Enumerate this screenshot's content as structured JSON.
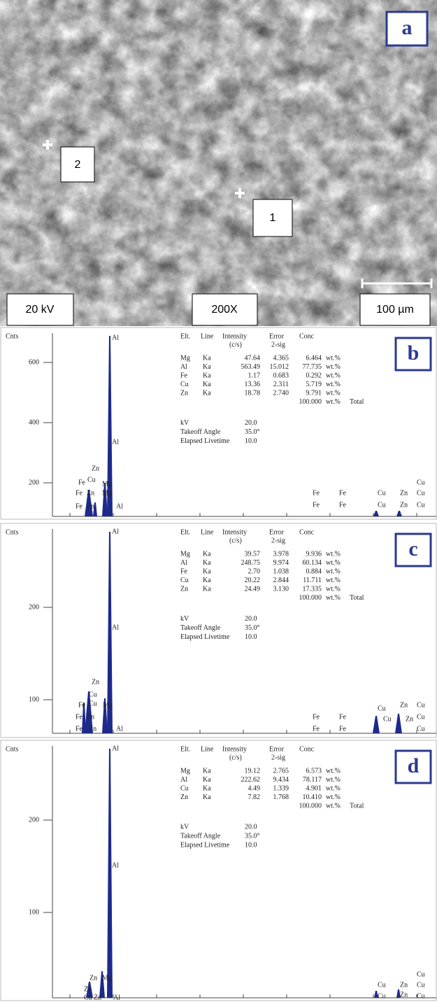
{
  "panel_a": {
    "letter": "a",
    "points": [
      "2",
      "1"
    ],
    "voltage": "20 kV",
    "magnification": "200X",
    "scale": "100 µm"
  },
  "spectra": [
    {
      "letter": "b",
      "y_label": "Cnts",
      "y_ticks": [
        600,
        400,
        200
      ],
      "table": {
        "header": [
          "Elt.",
          "Line",
          "Intensity",
          "Error",
          "Conc"
        ],
        "subheader": [
          "(c/s)",
          "2-sig"
        ],
        "rows": [
          [
            "Mg",
            "Ka",
            "47.64",
            "4.365",
            "6.464",
            "wt.%"
          ],
          [
            "Al",
            "Ka",
            "563.49",
            "15.012",
            "77.735",
            "wt.%"
          ],
          [
            "Fe",
            "Ka",
            "1.17",
            "0.683",
            "0.292",
            "wt.%"
          ],
          [
            "Cu",
            "Ka",
            "13.36",
            "2.311",
            "5.719",
            "wt.%"
          ],
          [
            "Zn",
            "Ka",
            "18.78",
            "2.740",
            "9.791",
            "wt.%"
          ]
        ],
        "total": [
          "100.000",
          "wt.%",
          "Total"
        ]
      },
      "settings": [
        [
          "kV",
          "20.0"
        ],
        [
          "Takeoff Angle",
          "35.0°"
        ],
        [
          "Elapsed Livetime",
          "10.0"
        ]
      ],
      "peak_labels": [
        "Al",
        "Al",
        "Zn",
        "Fe",
        "Cu",
        "Mg",
        "Fe",
        "Zn",
        "Mg",
        "Fe",
        "Zn",
        "Al",
        "Fe",
        "Fe",
        "Cu",
        "Zn",
        "Cu",
        "Cu",
        "Fe",
        "Fe",
        "Cu",
        "Zn",
        "Cu"
      ]
    },
    {
      "letter": "c",
      "y_label": "Cnts",
      "y_ticks": [
        200,
        100
      ],
      "table": {
        "header": [
          "Elt.",
          "Line",
          "Intensity",
          "Error",
          "Conc"
        ],
        "subheader": [
          "(c/s)",
          "2-sig"
        ],
        "rows": [
          [
            "Mg",
            "Ka",
            "39.57",
            "3.978",
            "9.936",
            "wt.%"
          ],
          [
            "Al",
            "Ka",
            "248.75",
            "9.974",
            "60.134",
            "wt.%"
          ],
          [
            "Fe",
            "Ka",
            "2.70",
            "1.038",
            "0.884",
            "wt.%"
          ],
          [
            "Cu",
            "Ka",
            "20.22",
            "2.844",
            "11.711",
            "wt.%"
          ],
          [
            "Zn",
            "Ka",
            "24.49",
            "3.130",
            "17.335",
            "wt.%"
          ]
        ],
        "total": [
          "100.000",
          "wt.%",
          "Total"
        ]
      },
      "settings": [
        [
          "kV",
          "20.0"
        ],
        [
          "Takeoff Angle",
          "35.0°"
        ],
        [
          "Elapsed Livetime",
          "10.0"
        ]
      ],
      "peak_labels": [
        "Al",
        "Al",
        "Zn",
        "Cu",
        "Fe",
        "Cu",
        "Mg",
        "Fe",
        "Zn",
        "Fe",
        "Zn",
        "Al",
        "Fe",
        "Fe",
        "Fe",
        "Fe",
        "Cu",
        "Zn",
        "Cu",
        "Cu",
        "Zn",
        "Cu",
        "Cu"
      ]
    },
    {
      "letter": "d",
      "y_label": "Cnts",
      "y_ticks": [
        200,
        100
      ],
      "table": {
        "header": [
          "Elt.",
          "Line",
          "Intensity",
          "Error",
          "Conc"
        ],
        "subheader": [
          "(c/s)",
          "2-sig"
        ],
        "rows": [
          [
            "Mg",
            "Ka",
            "19.12",
            "2.765",
            "6.573",
            "wt.%"
          ],
          [
            "Al",
            "Ka",
            "222.62",
            "9.434",
            "78.117",
            "wt.%"
          ],
          [
            "Cu",
            "Ka",
            "4.49",
            "1.339",
            "4.901",
            "wt.%"
          ],
          [
            "Zn",
            "Ka",
            "7.82",
            "1.768",
            "10.410",
            "wt.%"
          ]
        ],
        "total": [
          "100.000",
          "wt.%",
          "Total"
        ]
      },
      "settings": [
        [
          "kV",
          "20.0"
        ],
        [
          "Takeoff Angle",
          "35.0°"
        ],
        [
          "Elapsed Livetime",
          "10.0"
        ]
      ],
      "peak_labels": [
        "Al",
        "Al",
        "Zn",
        "Mg",
        "Zn",
        "Cu",
        "Zn",
        "Al",
        "Cu",
        "Cu",
        "Zn",
        "Cu",
        "Cu",
        "Zn",
        "Cu"
      ]
    }
  ]
}
